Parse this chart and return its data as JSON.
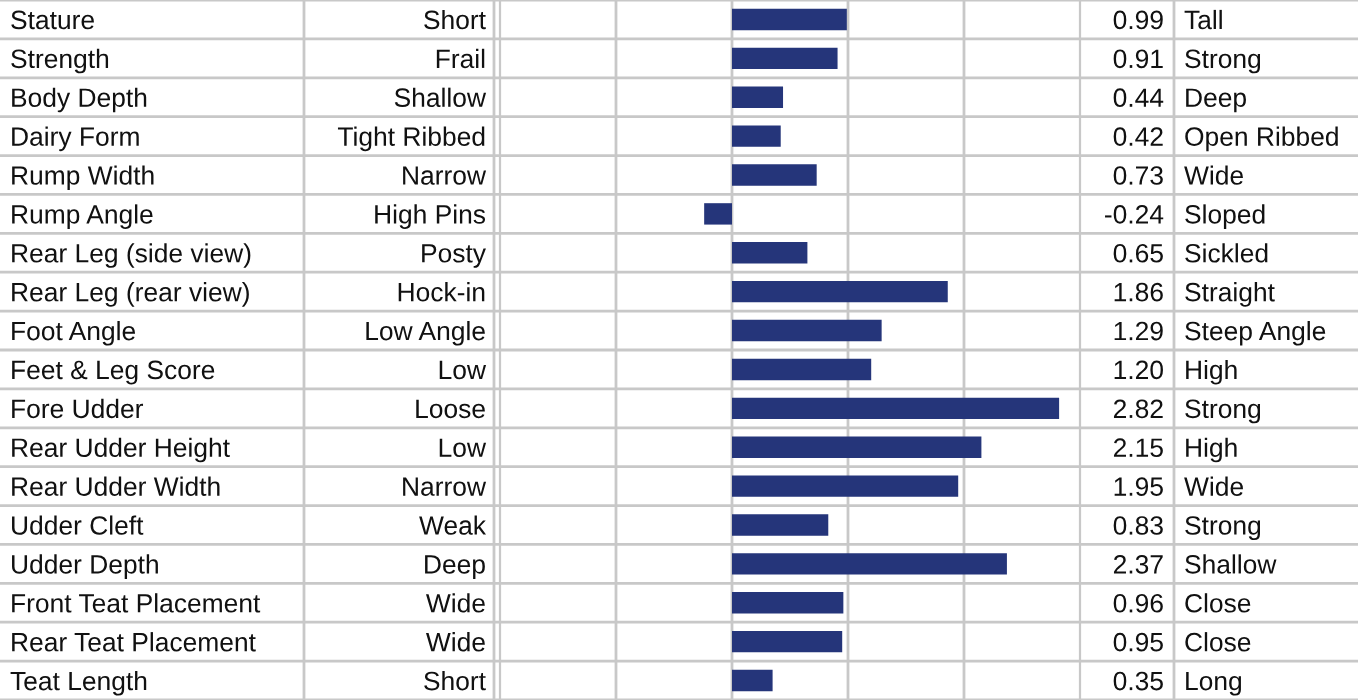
{
  "chart_data": {
    "type": "bar",
    "orientation": "horizontal",
    "categories": [
      "Stature",
      "Strength",
      "Body Depth",
      "Dairy Form",
      "Rump Width",
      "Rump Angle",
      "Rear Leg (side view)",
      "Rear Leg (rear view)",
      "Foot Angle",
      "Feet & Leg Score",
      "Fore Udder",
      "Rear Udder Height",
      "Rear Udder Width",
      "Udder Cleft",
      "Udder Depth",
      "Front Teat Placement",
      "Rear Teat Placement",
      "Teat Length"
    ],
    "values": [
      0.99,
      0.91,
      0.44,
      0.42,
      0.73,
      -0.24,
      0.65,
      1.86,
      1.29,
      1.2,
      2.82,
      2.15,
      1.95,
      0.83,
      2.37,
      0.96,
      0.95,
      0.35
    ],
    "value_labels": [
      "0.99",
      "0.91",
      "0.44",
      "0.42",
      "0.73",
      "-0.24",
      "0.65",
      "1.86",
      "1.29",
      "1.20",
      "2.82",
      "2.15",
      "1.95",
      "0.83",
      "2.37",
      "0.96",
      "0.95",
      "0.35"
    ],
    "color": "#25357a",
    "xlim": [
      -2,
      3
    ],
    "xticks": [
      {
        "value": -1,
        "label": null
      },
      {
        "value": 0,
        "label": null
      },
      {
        "value": 1,
        "label": null
      },
      {
        "value": 2,
        "label": null
      }
    ],
    "grid": "x",
    "legend": false,
    "annotations": [
      "Short",
      "Frail",
      "Shallow",
      "Tight Ribbed",
      "Narrow",
      "High Pins",
      "Posty",
      "Hock-in",
      "Low Angle",
      "Low",
      "Loose",
      "Low",
      "Narrow",
      "Weak",
      "Deep",
      "Wide",
      "Wide",
      "Short",
      "Tall",
      "Strong",
      "Deep",
      "Open Ribbed",
      "Wide",
      "Sloped",
      "Sickled",
      "Straight",
      "Steep Angle",
      "High",
      "Strong",
      "High",
      "Wide",
      "Strong",
      "Shallow",
      "Close",
      "Close",
      "Long"
    ]
  }
}
